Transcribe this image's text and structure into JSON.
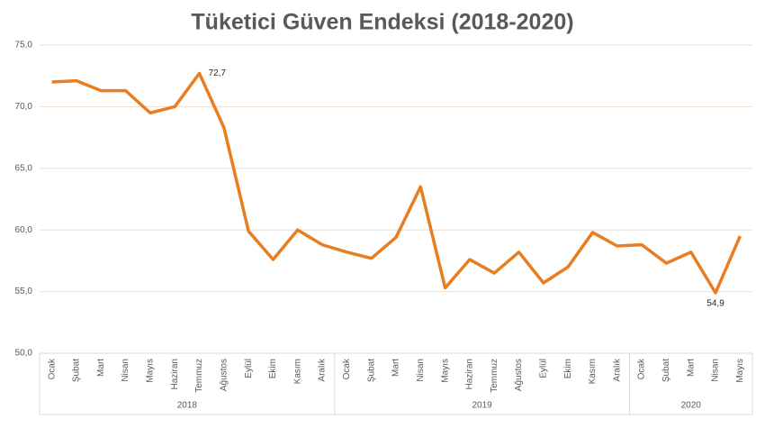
{
  "chart_data": {
    "type": "line",
    "title": "Tüketici Güven Endeksi (2018-2020)",
    "groups": [
      {
        "name": "2018",
        "categories": [
          "Ocak",
          "Şubat",
          "Mart",
          "Nisan",
          "Mayıs",
          "Haziran",
          "Temmuz",
          "Ağustos",
          "Eylül",
          "Ekim",
          "Kasım",
          "Aralık"
        ]
      },
      {
        "name": "2019",
        "categories": [
          "Ocak",
          "Şubat",
          "Mart",
          "Nisan",
          "Mayıs",
          "Haziran",
          "Temmuz",
          "Ağustos",
          "Eylül",
          "Ekim",
          "Kasım",
          "Aralık"
        ]
      },
      {
        "name": "2020",
        "categories": [
          "Ocak",
          "Şubat",
          "Mart",
          "Nisan",
          "Mayıs"
        ]
      }
    ],
    "values": [
      72.0,
      72.1,
      71.3,
      71.3,
      69.5,
      70.0,
      72.7,
      68.3,
      59.9,
      57.6,
      60.0,
      58.8,
      58.2,
      57.7,
      59.4,
      63.5,
      55.3,
      57.6,
      56.5,
      58.2,
      55.7,
      57.0,
      59.8,
      58.7,
      58.8,
      57.3,
      58.2,
      54.9,
      59.5
    ],
    "value_labels": [
      null,
      null,
      null,
      null,
      null,
      null,
      "72,7",
      null,
      null,
      null,
      null,
      null,
      null,
      null,
      null,
      null,
      null,
      null,
      null,
      null,
      null,
      null,
      null,
      null,
      null,
      null,
      null,
      "54,9",
      null
    ],
    "color": "#e87d22",
    "ylim": [
      50,
      75
    ],
    "yticks": [
      {
        "value": 50,
        "label": "50,0"
      },
      {
        "value": 55,
        "label": "55,0"
      },
      {
        "value": 60,
        "label": "60,0"
      },
      {
        "value": 65,
        "label": "65,0"
      },
      {
        "value": 70,
        "label": "70,0"
      },
      {
        "value": 75,
        "label": "75,0"
      }
    ],
    "grid": true
  }
}
